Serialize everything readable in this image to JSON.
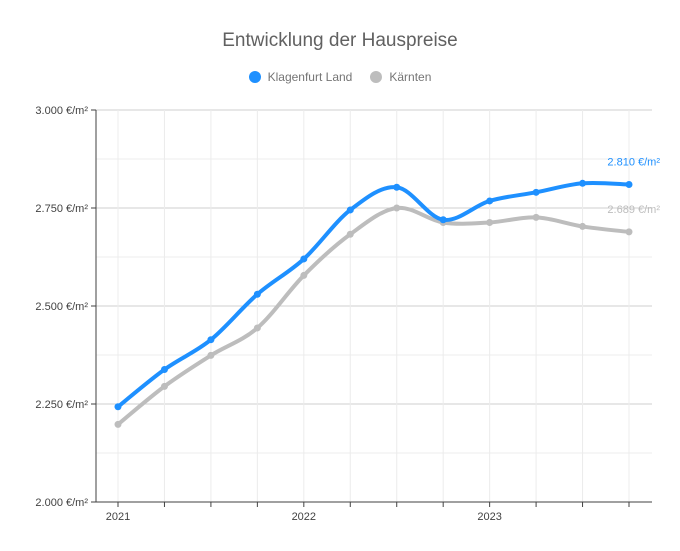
{
  "chart_data": {
    "type": "line",
    "title": "Entwicklung der Hauspreise",
    "xlabel": "",
    "ylabel": "",
    "x_tick_labels": [
      "2021",
      "2022",
      "2023"
    ],
    "y_tick_labels": [
      "2.000 €/m²",
      "2.250 €/m²",
      "2.500 €/m²",
      "2.750 €/m²",
      "3.000 €/m²"
    ],
    "ylim": [
      2000,
      3000
    ],
    "grid": true,
    "legend_position": "top-center",
    "x": [
      "2021 Q1",
      "2021 Q2",
      "2021 Q3",
      "2021 Q4",
      "2022 Q1",
      "2022 Q2",
      "2022 Q3",
      "2022 Q4",
      "2023 Q1",
      "2023 Q2",
      "2023 Q3",
      "2023 Q4"
    ],
    "series": [
      {
        "name": "Klagenfurt Land",
        "color": "#1e90ff",
        "values": [
          2243,
          2338,
          2414,
          2530,
          2620,
          2745,
          2803,
          2720,
          2768,
          2790,
          2813,
          2810
        ],
        "end_label": "2.810 €/m²"
      },
      {
        "name": "Kärnten",
        "color": "#bdbdbd",
        "values": [
          2198,
          2295,
          2374,
          2444,
          2578,
          2683,
          2750,
          2713,
          2713,
          2726,
          2703,
          2689
        ],
        "end_label": "2.689 €/m²"
      }
    ]
  }
}
